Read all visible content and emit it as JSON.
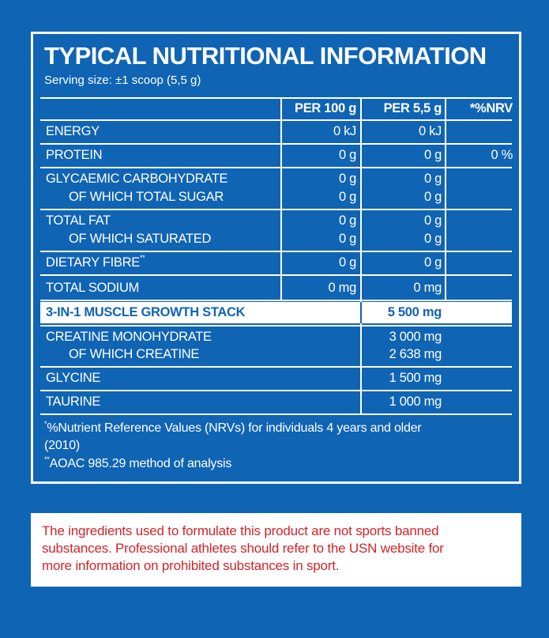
{
  "panel": {
    "title": "TYPICAL NUTRITIONAL INFORMATION",
    "serving": "Serving size: ±1 scoop (5,5 g)",
    "headers": {
      "per100": "PER 100 g",
      "per55": "PER 5,5 g",
      "nrv": "*%NRV"
    },
    "rows": {
      "energy": {
        "label": "ENERGY",
        "per100": "0 kJ",
        "per55": "0 kJ"
      },
      "protein": {
        "label": "PROTEIN",
        "per100": "0 g",
        "per55": "0 g",
        "nrv": "0 %"
      },
      "carb": {
        "label": "GLYCAEMIC CARBOHYDRATE",
        "per100": "0 g",
        "per55": "0 g"
      },
      "sugar": {
        "label": "OF WHICH TOTAL SUGAR",
        "per100": "0 g",
        "per55": "0 g"
      },
      "fat": {
        "label": "TOTAL FAT",
        "per100": "0 g",
        "per55": "0 g"
      },
      "saturated": {
        "label": "OF WHICH SATURATED",
        "per100": "0 g",
        "per55": "0 g"
      },
      "fibre": {
        "label": "DIETARY FIBRE",
        "sup": "**",
        "per100": "0 g",
        "per55": "0 g"
      },
      "sodium": {
        "label": "TOTAL SODIUM",
        "per100": "0 mg",
        "per55": "0 mg"
      },
      "stack": {
        "label": "3-IN-1 MUSCLE GROWTH STACK",
        "per55": "5 500 mg"
      },
      "creatine_mono": {
        "label": "CREATINE MONOHYDRATE",
        "per55": "3 000 mg"
      },
      "creatine": {
        "label": "OF WHICH CREATINE",
        "per55": "2 638 mg"
      },
      "glycine": {
        "label": "GLYCINE",
        "per55": "1 500 mg"
      },
      "taurine": {
        "label": "TAURINE",
        "per55": "1 000 mg"
      }
    },
    "footnotes": {
      "nrv_mark": "*",
      "nrv_line1": "%Nutrient Reference Values (NRVs) for individuals 4 years and older",
      "nrv_line2": "(2010)",
      "aoac_mark": "**",
      "aoac": "AOAC 985.29 method of analysis"
    }
  },
  "warning": {
    "line1": "The ingredients used to formulate this product are not sports banned",
    "line2": "substances. Professional athletes should refer to the USN website for",
    "line3": "more information on prohibited substances in sport."
  },
  "colors": {
    "background": "#1064b4",
    "text": "#ffffff",
    "warning_text": "#d2232a"
  }
}
